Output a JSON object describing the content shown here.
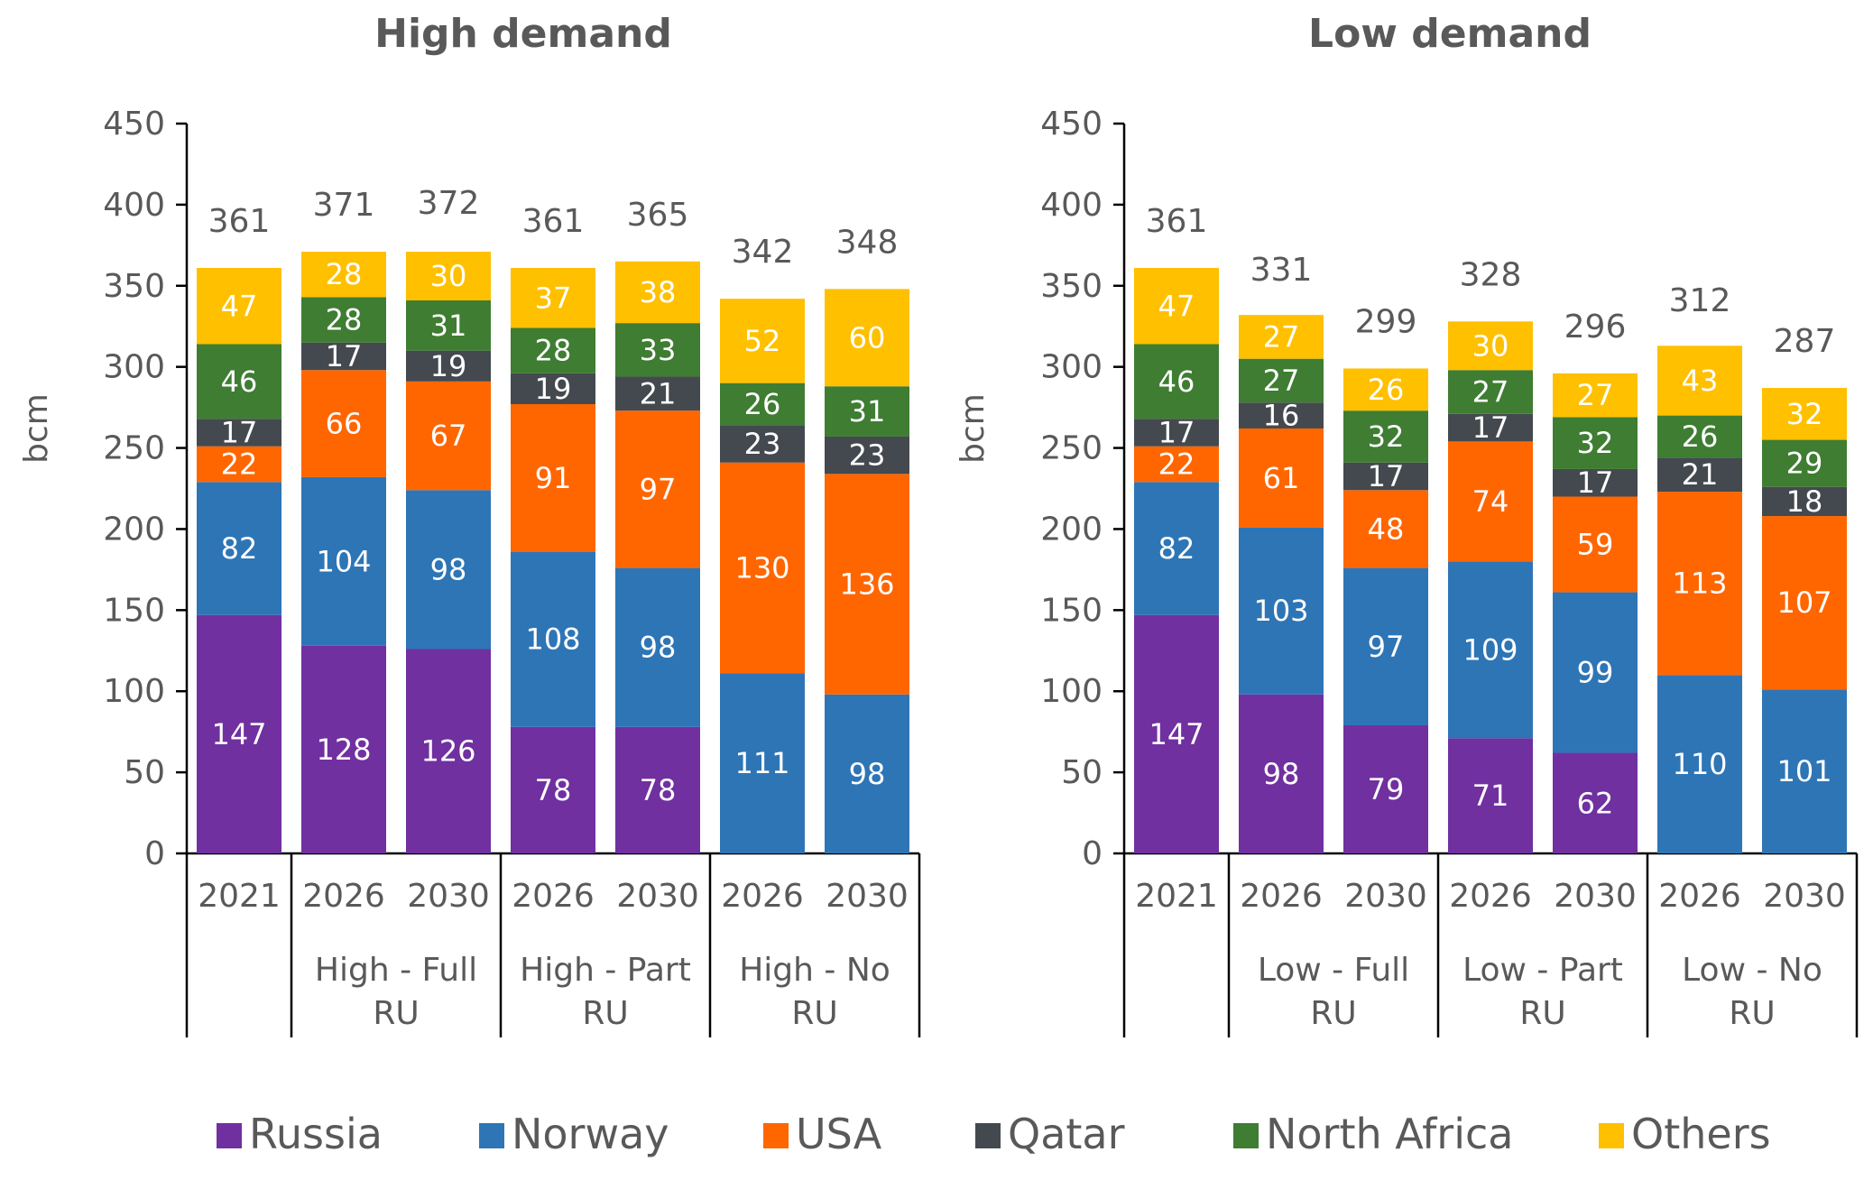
{
  "chart_data": [
    {
      "type": "bar",
      "stacked": true,
      "title": "High demand",
      "ylabel": "bcm",
      "ylim": [
        0,
        450
      ],
      "yticks": [
        "0",
        "50",
        "100",
        "150",
        "200",
        "250",
        "300",
        "350",
        "400",
        "450"
      ],
      "categories": [
        "2021",
        "2026",
        "2030",
        "2026",
        "2030",
        "2026",
        "2030"
      ],
      "groups": [
        {
          "label": "",
          "count": 1
        },
        {
          "label": "High - Full RU",
          "count": 2
        },
        {
          "label": "High - Part RU",
          "count": 2
        },
        {
          "label": "High - No RU",
          "count": 2
        }
      ],
      "totals": [
        361,
        371,
        372,
        361,
        365,
        342,
        348
      ],
      "series": [
        {
          "name": "Russia",
          "color": "#7030A0",
          "values": [
            147,
            128,
            126,
            78,
            78,
            0,
            0
          ]
        },
        {
          "name": "Norway",
          "color": "#2E75B6",
          "values": [
            82,
            104,
            98,
            108,
            98,
            111,
            98
          ]
        },
        {
          "name": "USA",
          "color": "#FF6600",
          "values": [
            22,
            66,
            67,
            91,
            97,
            130,
            136
          ]
        },
        {
          "name": "Qatar",
          "color": "#44494F",
          "values": [
            17,
            17,
            19,
            19,
            21,
            23,
            23
          ]
        },
        {
          "name": "North Africa",
          "color": "#3E7D32",
          "values": [
            46,
            28,
            31,
            28,
            33,
            26,
            31
          ]
        },
        {
          "name": "Others",
          "color": "#FFC000",
          "values": [
            47,
            28,
            30,
            37,
            38,
            52,
            60
          ]
        }
      ]
    },
    {
      "type": "bar",
      "stacked": true,
      "title": "Low demand",
      "ylabel": "bcm",
      "ylim": [
        0,
        450
      ],
      "yticks": [
        "0",
        "50",
        "100",
        "150",
        "200",
        "250",
        "300",
        "350",
        "400",
        "450"
      ],
      "categories": [
        "2021",
        "2026",
        "2030",
        "2026",
        "2030",
        "2026",
        "2030"
      ],
      "groups": [
        {
          "label": "",
          "count": 1
        },
        {
          "label": "Low - Full RU",
          "count": 2
        },
        {
          "label": "Low - Part RU",
          "count": 2
        },
        {
          "label": "Low - No RU",
          "count": 2
        }
      ],
      "totals": [
        361,
        331,
        299,
        328,
        296,
        312,
        287
      ],
      "series": [
        {
          "name": "Russia",
          "color": "#7030A0",
          "values": [
            147,
            98,
            79,
            71,
            62,
            0,
            0
          ]
        },
        {
          "name": "Norway",
          "color": "#2E75B6",
          "values": [
            82,
            103,
            97,
            109,
            99,
            110,
            101
          ]
        },
        {
          "name": "USA",
          "color": "#FF6600",
          "values": [
            22,
            61,
            48,
            74,
            59,
            113,
            107
          ]
        },
        {
          "name": "Qatar",
          "color": "#44494F",
          "values": [
            17,
            16,
            17,
            17,
            17,
            21,
            18
          ]
        },
        {
          "name": "North Africa",
          "color": "#3E7D32",
          "values": [
            46,
            27,
            32,
            27,
            32,
            26,
            29
          ]
        },
        {
          "name": "Others",
          "color": "#FFC000",
          "values": [
            47,
            27,
            26,
            30,
            27,
            43,
            32
          ]
        }
      ]
    }
  ],
  "legend": {
    "position": "bottom",
    "items": [
      {
        "name": "Russia",
        "color": "#7030A0"
      },
      {
        "name": "Norway",
        "color": "#2E75B6"
      },
      {
        "name": "USA",
        "color": "#FF6600"
      },
      {
        "name": "Qatar",
        "color": "#44494F"
      },
      {
        "name": "North Africa",
        "color": "#3E7D32"
      },
      {
        "name": "Others",
        "color": "#FFC000"
      }
    ]
  }
}
